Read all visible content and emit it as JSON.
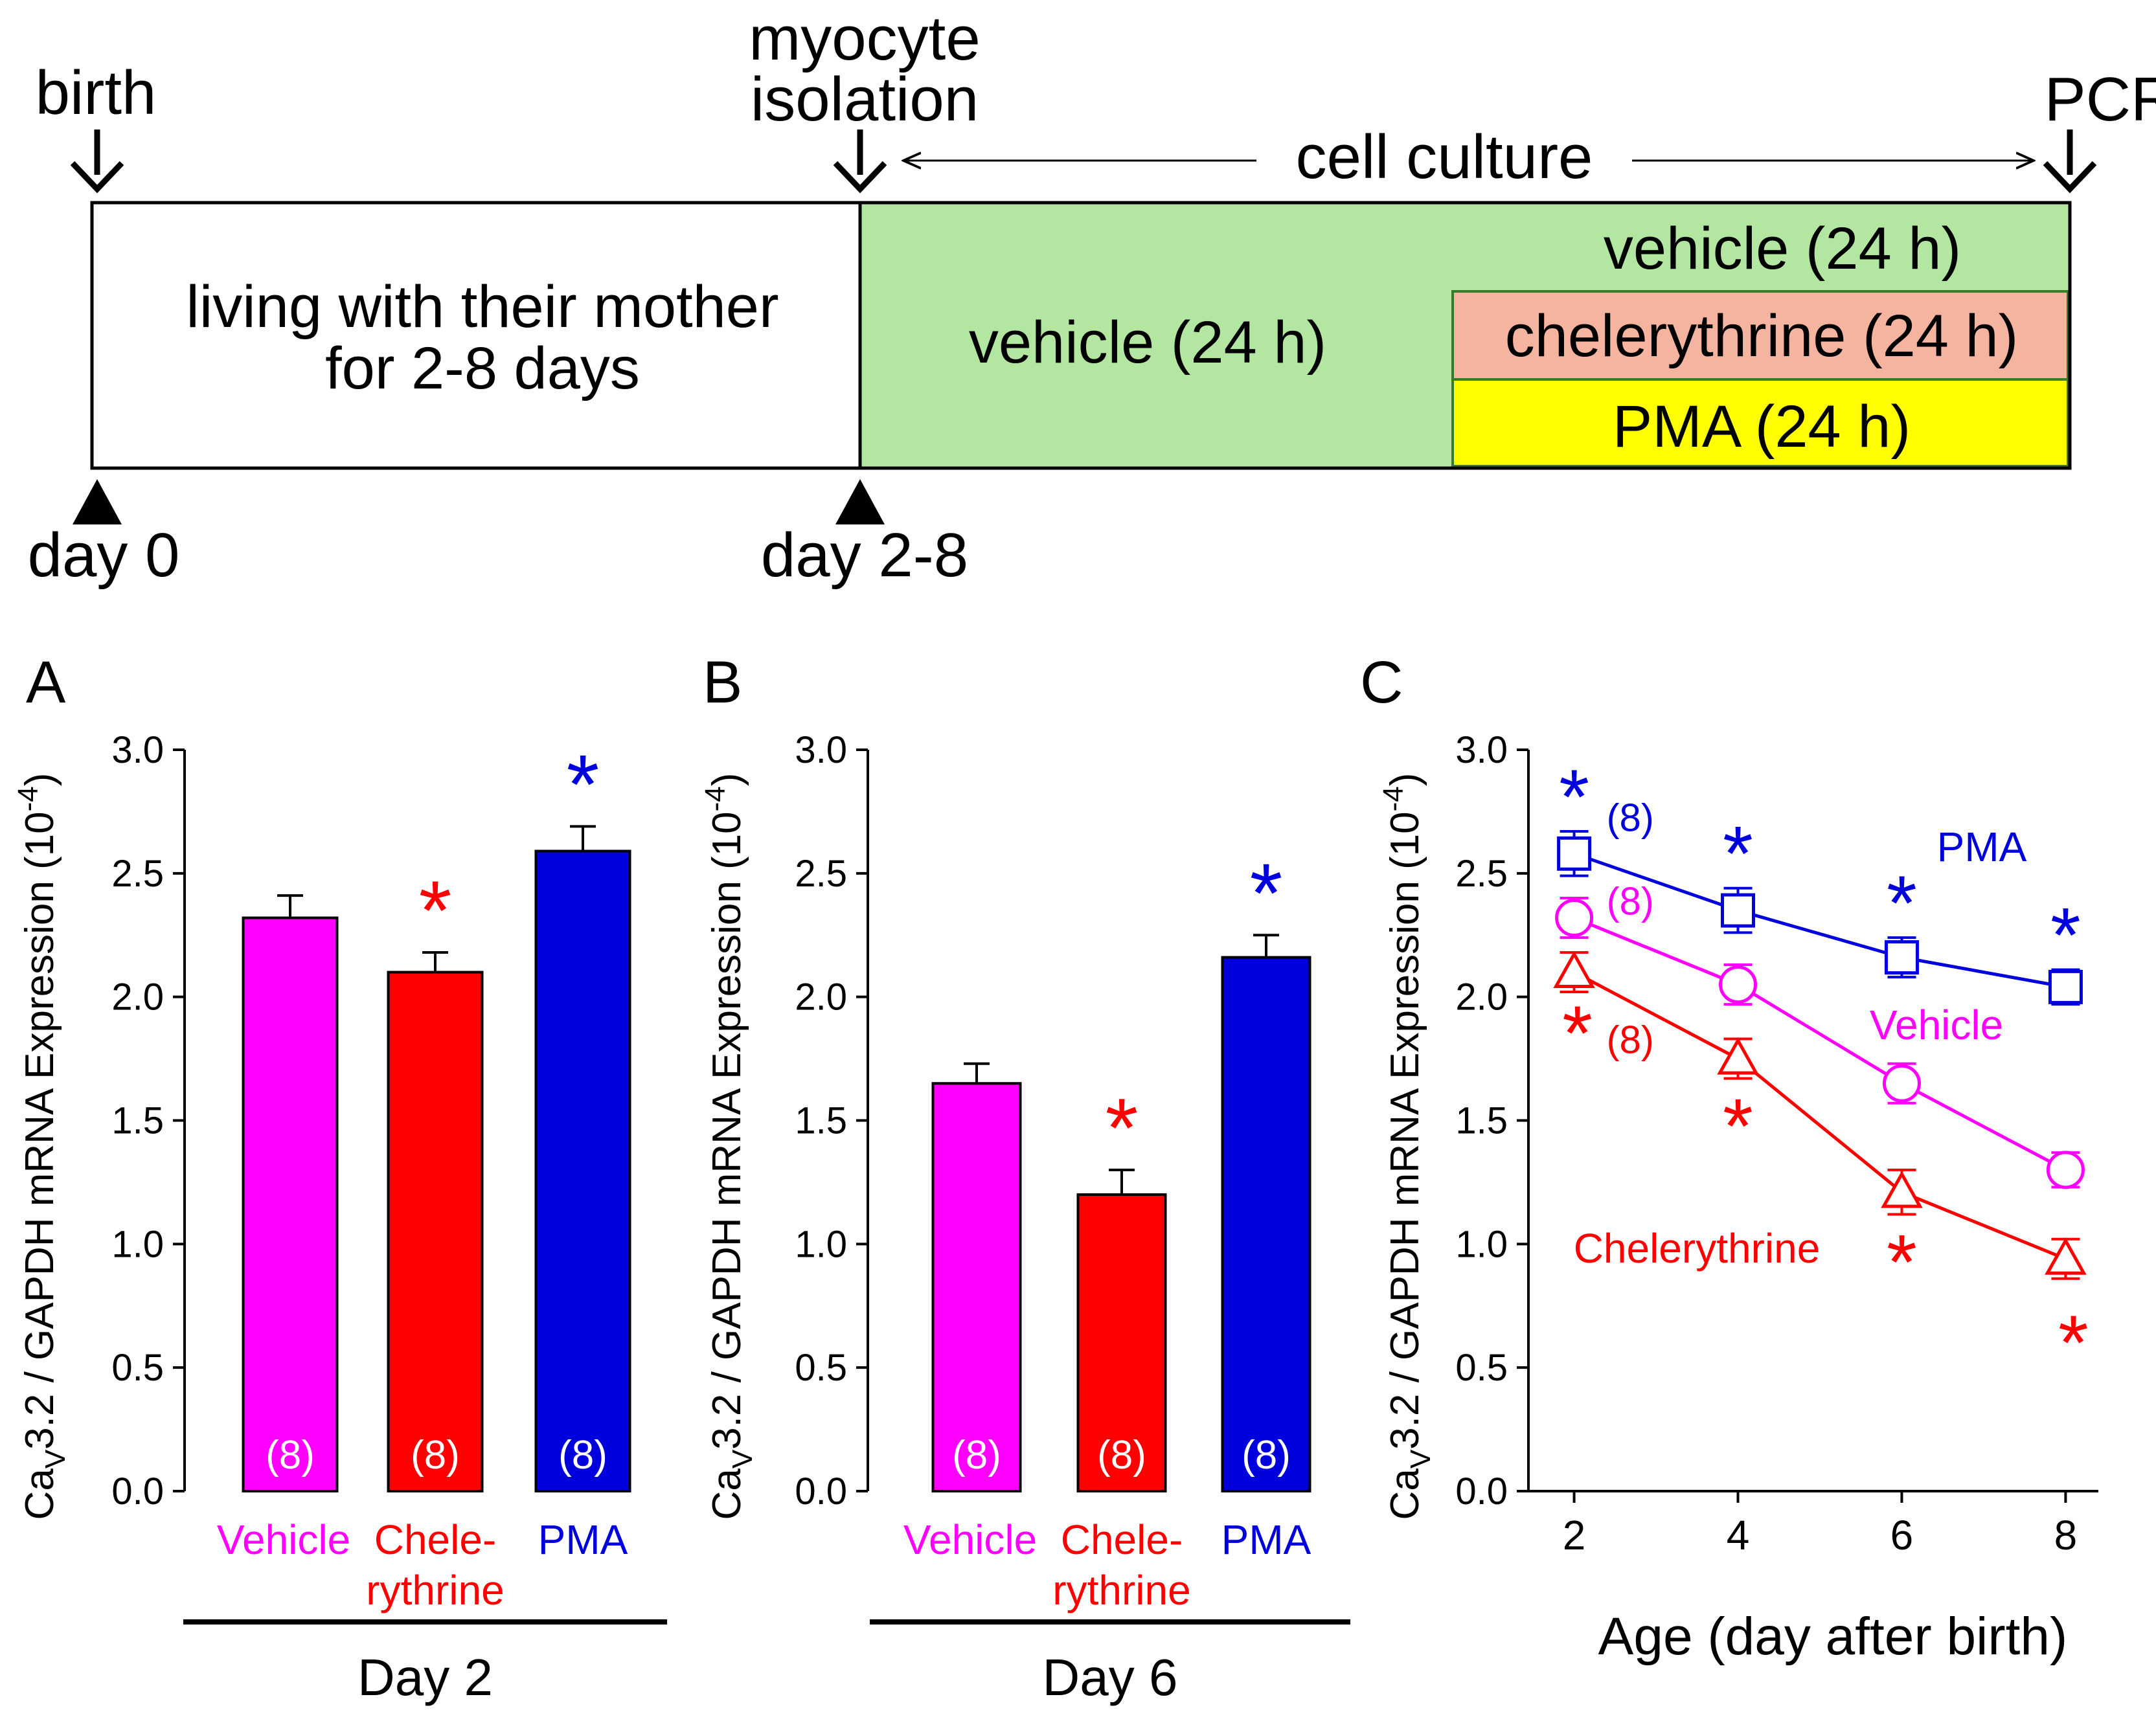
{
  "timeline": {
    "birth_label": "birth",
    "isolation_label_1": "myocyte",
    "isolation_label_2": "isolation",
    "pcr_label": "PCR",
    "culture_label": "cell culture",
    "mother_line_1": "living with their mother",
    "mother_line_2": "for 2-8 days",
    "vehicle_main": "vehicle (24 h)",
    "vehicle_top": "vehicle (24 h)",
    "chelerythrine": "chelerythrine (24 h)",
    "pma": "PMA (24 h)",
    "day0": "day 0",
    "day28": "day 2-8",
    "colors": {
      "vehicle_green": "#b3e6a0",
      "chelerythrine_salmon": "#f4b4a0",
      "pma_yellow": "#ffff00"
    }
  },
  "y_axis_label": {
    "pre": "Ca",
    "sub": "V",
    "post": "3.2 / GAPDH mRNA Expression (10",
    "sup": "-4",
    "close": ")"
  },
  "colors": {
    "vehicle": "#ff00ff",
    "chelerythrine": "#ff0000",
    "pma": "#0000dd"
  },
  "chart_data": [
    {
      "panel": "A",
      "type": "bar",
      "categories": [
        "Vehicle",
        "Chelerythrine",
        "PMA"
      ],
      "category_lines": [
        [
          "Vehicle"
        ],
        [
          "Chele-",
          "rythrine"
        ],
        [
          "PMA"
        ]
      ],
      "values": [
        2.32,
        2.1,
        2.59
      ],
      "errors": [
        0.09,
        0.08,
        0.1
      ],
      "n_labels": [
        "(8)",
        "(8)",
        "(8)"
      ],
      "significance": [
        "",
        "*",
        "*"
      ],
      "group_label": "Day 2",
      "yticks": [
        "0.0",
        "0.5",
        "1.0",
        "1.5",
        "2.0",
        "2.5",
        "3.0"
      ],
      "ylim": [
        0,
        3.0
      ]
    },
    {
      "panel": "B",
      "type": "bar",
      "categories": [
        "Vehicle",
        "Chelerythrine",
        "PMA"
      ],
      "category_lines": [
        [
          "Vehicle"
        ],
        [
          "Chele-",
          "rythrine"
        ],
        [
          "PMA"
        ]
      ],
      "values": [
        1.65,
        1.2,
        2.16
      ],
      "errors": [
        0.08,
        0.1,
        0.09
      ],
      "n_labels": [
        "(8)",
        "(8)",
        "(8)"
      ],
      "significance": [
        "",
        "*",
        "*"
      ],
      "group_label": "Day 6",
      "yticks": [
        "0.0",
        "0.5",
        "1.0",
        "1.5",
        "2.0",
        "2.5",
        "3.0"
      ],
      "ylim": [
        0,
        3.0
      ]
    },
    {
      "panel": "C",
      "type": "line",
      "xlabel": "Age (day after birth)",
      "x": [
        2,
        4,
        6,
        8
      ],
      "xticks": [
        "2",
        "4",
        "6",
        "8"
      ],
      "yticks": [
        "0.0",
        "0.5",
        "1.0",
        "1.5",
        "2.0",
        "2.5",
        "3.0"
      ],
      "ylim": [
        0,
        3.0
      ],
      "xlim": [
        1.6,
        8.4
      ],
      "series": [
        {
          "name": "PMA",
          "marker": "square",
          "values": [
            2.58,
            2.35,
            2.16,
            2.04
          ],
          "errors": [
            0.09,
            0.09,
            0.08,
            0.07
          ],
          "n_label": "(8)",
          "significance": [
            "*",
            "*",
            "*",
            "*"
          ]
        },
        {
          "name": "Vehicle",
          "marker": "circle",
          "values": [
            2.32,
            2.05,
            1.65,
            1.3
          ],
          "errors": [
            0.08,
            0.08,
            0.08,
            0.07
          ],
          "n_label": "(8)",
          "significance": [
            "",
            "",
            "",
            ""
          ]
        },
        {
          "name": "Chelerythrine",
          "marker": "triangle",
          "values": [
            2.1,
            1.75,
            1.21,
            0.94
          ],
          "errors": [
            0.08,
            0.08,
            0.09,
            0.08
          ],
          "n_label": "(8)",
          "significance": [
            "*",
            "*",
            "*",
            "*"
          ]
        }
      ]
    }
  ],
  "panels": [
    "A",
    "B",
    "C"
  ]
}
